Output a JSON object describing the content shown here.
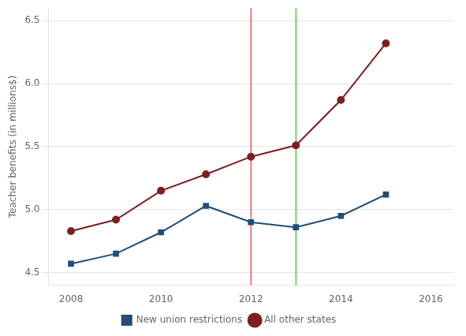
{
  "chart_data": {
    "type": "line",
    "ylabel": "Teacher benefits (in millions$)",
    "x": [
      2008,
      2009,
      2010,
      2011,
      2012,
      2013,
      2014,
      2015
    ],
    "series": [
      {
        "name": "New union restrictions",
        "color": "#1f4e79",
        "marker": "square",
        "values": [
          4.57,
          4.65,
          4.82,
          5.03,
          4.9,
          4.86,
          4.95,
          5.12
        ]
      },
      {
        "name": "All other states",
        "color": "#7b2020",
        "marker": "circle",
        "values": [
          4.83,
          4.92,
          5.15,
          5.28,
          5.42,
          5.51,
          5.87,
          6.32
        ]
      }
    ],
    "vlines": [
      {
        "x": 2012,
        "color": "#ff0000"
      },
      {
        "x": 2013,
        "color": "#00aa00"
      }
    ],
    "xlim": [
      2007.5,
      2016.5
    ],
    "xticks": [
      2008,
      2010,
      2012,
      2014,
      2016
    ],
    "ylim": [
      4.4,
      6.6
    ],
    "yticks": [
      4.5,
      {
        "value": 5.0,
        "label": "5.0"
      },
      5.5,
      {
        "value": 6.0,
        "label": "6.0"
      },
      6.5
    ],
    "grid": "y",
    "legend": "bottom"
  }
}
